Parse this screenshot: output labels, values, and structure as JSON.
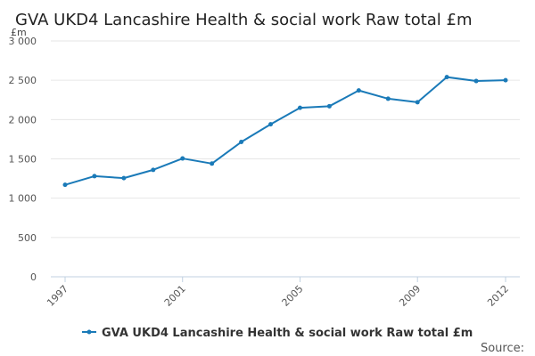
{
  "chart_data": {
    "type": "line",
    "title": "GVA UKD4 Lancashire Health & social work Raw total £m",
    "y_unit": "£m",
    "xlabel": "",
    "ylabel": "",
    "x": [
      1997,
      1998,
      1999,
      2000,
      2001,
      2002,
      2003,
      2004,
      2005,
      2006,
      2007,
      2008,
      2009,
      2010,
      2011,
      2012
    ],
    "x_tick_labels": [
      "1997",
      "2001",
      "2005",
      "2009",
      "2012"
    ],
    "x_tick_values": [
      1997,
      2001,
      2005,
      2009,
      2012
    ],
    "y_ticks": [
      0,
      500,
      1000,
      1500,
      2000,
      2500,
      3000
    ],
    "y_tick_labels": [
      "0",
      "500",
      "1 000",
      "1 500",
      "2 000",
      "2 500",
      "3 000"
    ],
    "ylim": [
      0,
      3000
    ],
    "grid": true,
    "legend_position": "bottom",
    "series": [
      {
        "name": "GVA UKD4 Lancashire Health & social work Raw total £m",
        "color": "#1a7ab8",
        "values": [
          1170,
          1280,
          1255,
          1360,
          1505,
          1440,
          1715,
          1940,
          2150,
          2170,
          2370,
          2265,
          2220,
          2540,
          2490,
          2500
        ]
      }
    ],
    "source_label": "Source:"
  }
}
